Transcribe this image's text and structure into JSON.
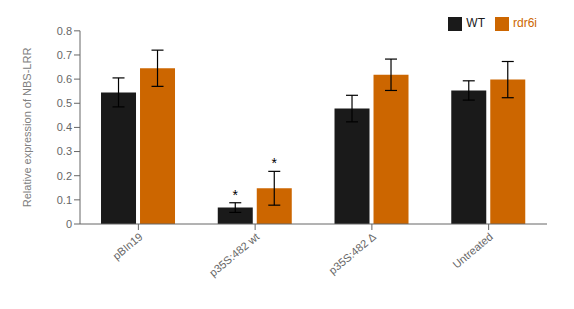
{
  "chart_data": {
    "type": "bar",
    "categories": [
      "pBIn19",
      "p35S:482 wt",
      "p35S:482 Δ",
      "Untreated"
    ],
    "series": [
      {
        "name": "WT",
        "color": "#1a1a1a",
        "values": [
          0.545,
          0.068,
          0.478,
          0.553
        ],
        "errors": [
          0.06,
          0.02,
          0.055,
          0.04
        ]
      },
      {
        "name": "rdr6i",
        "color": "#cc6600",
        "values": [
          0.645,
          0.148,
          0.618,
          0.598
        ],
        "errors": [
          0.075,
          0.07,
          0.065,
          0.075
        ]
      }
    ],
    "ylabel": "Relative expression of NBS-LRR",
    "ylim": [
      0,
      0.8
    ],
    "yticks": [
      0,
      0.1,
      0.2,
      0.3,
      0.4,
      0.5,
      0.6,
      0.7,
      0.8
    ],
    "legend": "upper right",
    "grid": false,
    "annotations": [
      {
        "text": "*",
        "category": "p35S:482 wt",
        "series": "WT"
      },
      {
        "text": "*",
        "category": "p35S:482 wt",
        "series": "rdr6i"
      }
    ]
  }
}
